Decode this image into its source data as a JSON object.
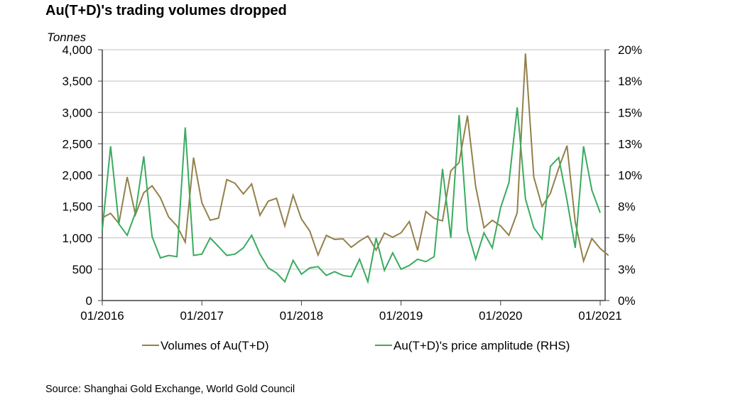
{
  "chart_data": {
    "type": "line",
    "title": "Au(T+D)'s trading volumes dropped",
    "ylabel": "Tonnes",
    "y2label": "",
    "xlabel": "",
    "x_start": "01/2016",
    "x_frequency": "monthly",
    "x_tick_labels": [
      "01/2016",
      "01/2017",
      "01/2018",
      "01/2019",
      "01/2020",
      "01/2021"
    ],
    "ylim": [
      0,
      4000
    ],
    "y_ticks": [
      0,
      500,
      1000,
      1500,
      2000,
      2500,
      3000,
      3500,
      4000
    ],
    "y_tick_labels": [
      "0",
      "500",
      "1,000",
      "1,500",
      "2,000",
      "2,500",
      "3,000",
      "3,500",
      "4,000"
    ],
    "y2lim": [
      0,
      20
    ],
    "y2_ticks": [
      0,
      2.5,
      5,
      7.5,
      10,
      12.5,
      15,
      17.5,
      20
    ],
    "y2_tick_labels": [
      "0%",
      "3%",
      "5%",
      "8%",
      "10%",
      "13%",
      "15%",
      "18%",
      "20%"
    ],
    "grid": true,
    "legend_position": "bottom",
    "series": [
      {
        "name": "Volumes of Au(T+D)",
        "axis": "left",
        "color": "#94804a",
        "values": [
          1320,
          1390,
          1230,
          1970,
          1370,
          1720,
          1830,
          1640,
          1330,
          1190,
          930,
          2280,
          1560,
          1280,
          1315,
          1930,
          1870,
          1700,
          1860,
          1360,
          1585,
          1630,
          1190,
          1680,
          1300,
          1110,
          725,
          1040,
          975,
          985,
          850,
          950,
          1030,
          805,
          1075,
          1010,
          1080,
          1260,
          800,
          1420,
          1310,
          1270,
          2070,
          2200,
          2950,
          1820,
          1160,
          1280,
          1190,
          1040,
          1400,
          3940,
          1970,
          1500,
          1710,
          2110,
          2470,
          1250,
          630,
          990,
          830,
          720
        ]
      },
      {
        "name": "Au(T+D)'s price amplitude (RHS)",
        "axis": "right",
        "color": "#3aab5f",
        "values": [
          5.6,
          12.3,
          6.1,
          5.2,
          7.0,
          11.5,
          5.1,
          3.4,
          3.6,
          3.5,
          13.8,
          3.6,
          3.7,
          5.0,
          4.3,
          3.6,
          3.7,
          4.2,
          5.2,
          3.7,
          2.6,
          2.2,
          1.5,
          3.2,
          2.1,
          2.6,
          2.7,
          2.0,
          2.3,
          2.0,
          1.9,
          3.3,
          1.5,
          5.0,
          2.4,
          3.8,
          2.5,
          2.8,
          3.3,
          3.1,
          3.5,
          10.5,
          5.0,
          14.8,
          5.6,
          3.3,
          5.4,
          4.2,
          7.4,
          9.4,
          15.4,
          8.1,
          5.8,
          4.9,
          10.7,
          11.4,
          8.0,
          4.2,
          12.3,
          8.8,
          7.0
        ]
      }
    ],
    "source": "Source: Shanghai Gold Exchange, World Gold Council"
  }
}
